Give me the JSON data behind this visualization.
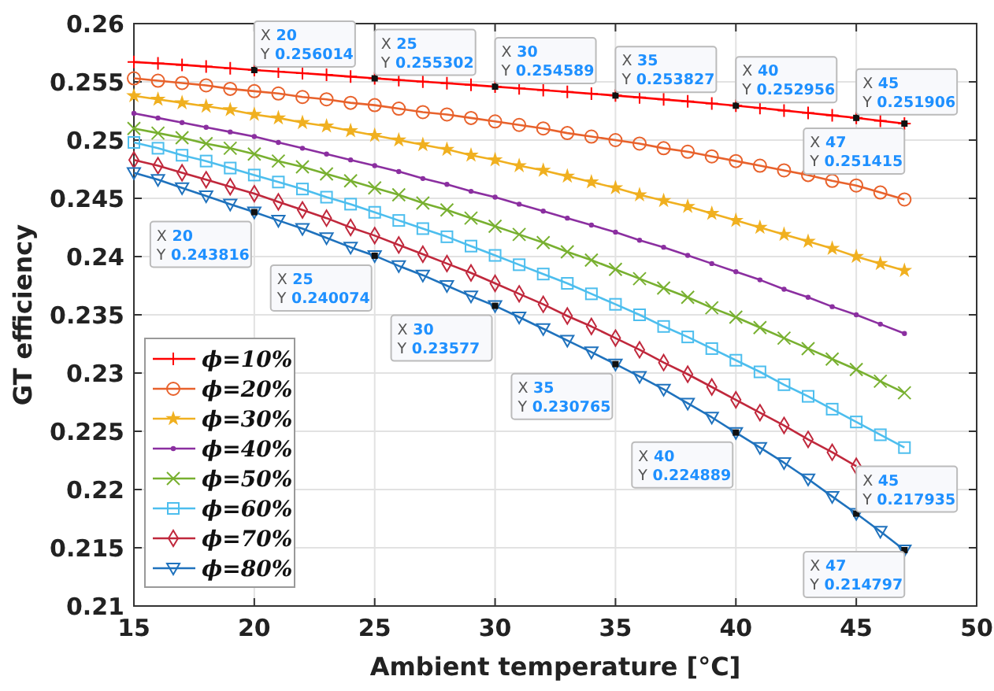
{
  "chart_data": {
    "type": "line",
    "xlabel": "Ambient temperature [°C]",
    "ylabel": "GT efficiency",
    "x": [
      15,
      16,
      17,
      18,
      19,
      20,
      21,
      22,
      23,
      24,
      25,
      26,
      27,
      28,
      29,
      30,
      31,
      32,
      33,
      34,
      35,
      36,
      37,
      38,
      39,
      40,
      41,
      42,
      43,
      44,
      45,
      46,
      47
    ],
    "xlim": [
      15,
      50
    ],
    "xticks": [
      15,
      20,
      25,
      30,
      35,
      40,
      45,
      50
    ],
    "ylim": [
      0.21,
      0.26
    ],
    "yticks": [
      0.21,
      0.215,
      0.22,
      0.225,
      0.23,
      0.235,
      0.24,
      0.245,
      0.25,
      0.255,
      0.26
    ],
    "grid": true,
    "legend": "bottom left",
    "line_style": "solid",
    "series": [
      {
        "name": "ϕ=10%",
        "color": "#ff0000",
        "marker": "plus",
        "values": [
          0.2567,
          0.25659,
          0.25646,
          0.25632,
          0.25617,
          0.256014,
          0.25588,
          0.25574,
          0.2556,
          0.25545,
          0.255302,
          0.25516,
          0.25502,
          0.25488,
          0.25474,
          0.254589,
          0.25444,
          0.25429,
          0.25414,
          0.25398,
          0.253827,
          0.25366,
          0.25349,
          0.25332,
          0.25314,
          0.252956,
          0.25275,
          0.25254,
          0.25233,
          0.25212,
          0.251906,
          0.25166,
          0.251415
        ]
      },
      {
        "name": "ϕ=20%",
        "color": "#e8622c",
        "marker": "circle",
        "values": [
          0.2553,
          0.2551,
          0.2549,
          0.2547,
          0.2544,
          0.2542,
          0.254,
          0.2537,
          0.2535,
          0.2532,
          0.253,
          0.2527,
          0.2524,
          0.2522,
          0.2519,
          0.2516,
          0.2513,
          0.251,
          0.2506,
          0.2503,
          0.25,
          0.2497,
          0.2493,
          0.249,
          0.2486,
          0.2482,
          0.2478,
          0.2474,
          0.247,
          0.2465,
          0.2461,
          0.2455,
          0.2449
        ]
      },
      {
        "name": "ϕ=30%",
        "color": "#f0b020",
        "marker": "star",
        "values": [
          0.2538,
          0.2535,
          0.2532,
          0.2529,
          0.2526,
          0.2522,
          0.2519,
          0.2515,
          0.2512,
          0.2508,
          0.2504,
          0.25,
          0.2496,
          0.2492,
          0.2487,
          0.2483,
          0.2478,
          0.2474,
          0.2469,
          0.2464,
          0.2459,
          0.2453,
          0.2448,
          0.2443,
          0.2437,
          0.2431,
          0.2425,
          0.2419,
          0.2413,
          0.2407,
          0.24,
          0.2394,
          0.2388
        ]
      },
      {
        "name": "ϕ=40%",
        "color": "#8b2fa0",
        "marker": "point",
        "values": [
          0.2523,
          0.2519,
          0.2515,
          0.2511,
          0.2507,
          0.2503,
          0.2498,
          0.2493,
          0.2488,
          0.2483,
          0.2478,
          0.2473,
          0.2467,
          0.2462,
          0.2456,
          0.2451,
          0.2445,
          0.2439,
          0.2433,
          0.2427,
          0.2421,
          0.2414,
          0.2408,
          0.2401,
          0.2394,
          0.2387,
          0.238,
          0.2372,
          0.2365,
          0.2357,
          0.235,
          0.2342,
          0.2334
        ]
      },
      {
        "name": "ϕ=50%",
        "color": "#78b030",
        "marker": "cross",
        "values": [
          0.251,
          0.2506,
          0.2502,
          0.2497,
          0.2493,
          0.2488,
          0.2482,
          0.2477,
          0.2471,
          0.2465,
          0.2459,
          0.2453,
          0.2446,
          0.244,
          0.2433,
          0.2426,
          0.2419,
          0.2412,
          0.2404,
          0.2397,
          0.2389,
          0.2381,
          0.2373,
          0.2365,
          0.2356,
          0.2348,
          0.2339,
          0.233,
          0.2321,
          0.2312,
          0.2303,
          0.2293,
          0.2283
        ]
      },
      {
        "name": "ϕ=60%",
        "color": "#4dbeee",
        "marker": "square",
        "values": [
          0.2498,
          0.2493,
          0.2487,
          0.2482,
          0.2476,
          0.247,
          0.2464,
          0.2458,
          0.2451,
          0.2445,
          0.2438,
          0.2431,
          0.2424,
          0.2417,
          0.2409,
          0.2401,
          0.2393,
          0.2385,
          0.2377,
          0.2368,
          0.2359,
          0.235,
          0.234,
          0.2331,
          0.2321,
          0.2311,
          0.2301,
          0.229,
          0.228,
          0.2269,
          0.2258,
          0.2247,
          0.2236
        ]
      },
      {
        "name": "ϕ=70%",
        "color": "#c0283c",
        "marker": "diamond",
        "x": [
          15,
          16,
          17,
          18,
          19,
          20,
          21,
          22,
          23,
          24,
          25,
          26,
          27,
          28,
          29,
          30,
          31,
          32,
          33,
          34,
          35,
          36,
          37,
          38,
          39,
          40,
          41,
          42,
          43,
          44,
          45
        ],
        "values": [
          0.2483,
          0.2478,
          0.2472,
          0.2466,
          0.246,
          0.2454,
          0.2447,
          0.244,
          0.2433,
          0.2425,
          0.2418,
          0.241,
          0.2402,
          0.2394,
          0.2386,
          0.2377,
          0.2368,
          0.2359,
          0.2349,
          0.234,
          0.233,
          0.232,
          0.2309,
          0.2299,
          0.2288,
          0.2277,
          0.2266,
          0.2255,
          0.2243,
          0.2232,
          0.222
        ]
      },
      {
        "name": "ϕ=80%",
        "color": "#1f72bd",
        "marker": "triangle-down",
        "values": [
          0.2472,
          0.2466,
          0.2459,
          0.2452,
          0.2445,
          0.243816,
          0.2431,
          0.2424,
          0.2416,
          0.2408,
          0.240074,
          0.2392,
          0.2384,
          0.2375,
          0.2366,
          0.23577,
          0.2348,
          0.2338,
          0.2328,
          0.2318,
          0.230765,
          0.2297,
          0.2286,
          0.2274,
          0.2262,
          0.224889,
          0.2236,
          0.2223,
          0.2209,
          0.2194,
          0.217935,
          0.2164,
          0.214797
        ]
      }
    ],
    "annotations": [
      {
        "text": "X 20\nY 0.256014",
        "x": 20,
        "y": 0.256014
      },
      {
        "text": "X 25\nY 0.255302",
        "x": 25,
        "y": 0.255302
      },
      {
        "text": "X 30\nY 0.254589",
        "x": 30,
        "y": 0.254589
      },
      {
        "text": "X 35\nY 0.253827",
        "x": 35,
        "y": 0.253827
      },
      {
        "text": "X 40\nY 0.252956",
        "x": 40,
        "y": 0.252956
      },
      {
        "text": "X 45\nY 0.251906",
        "x": 45,
        "y": 0.251906
      },
      {
        "text": "X 47\nY 0.251415",
        "x": 47,
        "y": 0.251415
      },
      {
        "text": "X 20\nY 0.243816",
        "x": 20,
        "y": 0.243816
      },
      {
        "text": "X 25\nY 0.240074",
        "x": 25,
        "y": 0.240074
      },
      {
        "text": "X 30\nY 0.23577",
        "x": 30,
        "y": 0.23577
      },
      {
        "text": "X 35\nY 0.230765",
        "x": 35,
        "y": 0.230765
      },
      {
        "text": "X 40\nY 0.224889",
        "x": 40,
        "y": 0.224889
      },
      {
        "text": "X 45\nY 0.217935",
        "x": 45,
        "y": 0.217935
      },
      {
        "text": "X 47\nY 0.214797",
        "x": 47,
        "y": 0.214797
      }
    ]
  }
}
